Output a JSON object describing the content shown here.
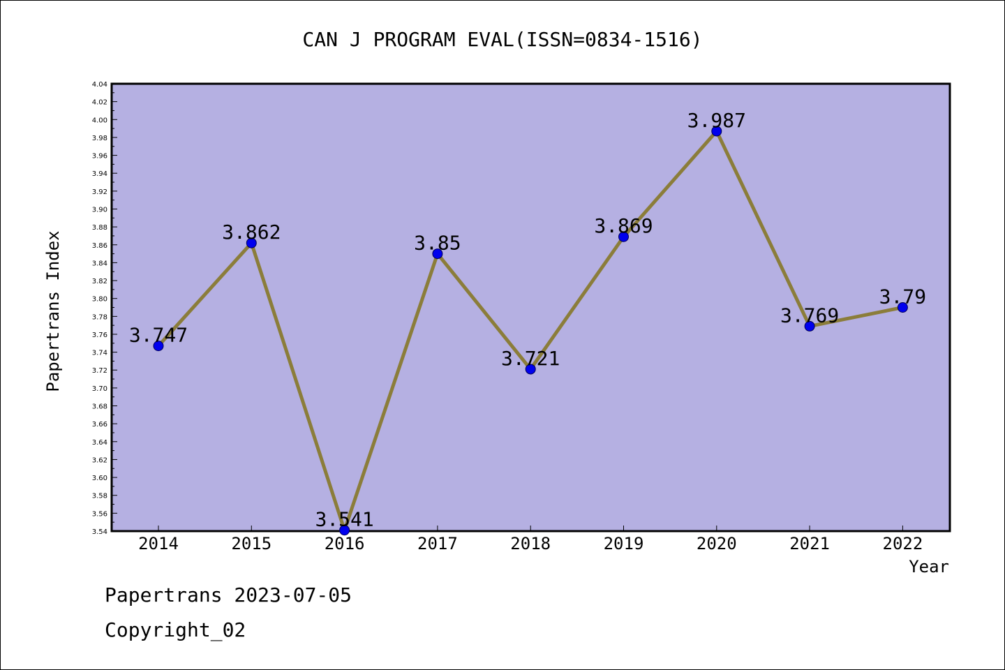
{
  "chart_data": {
    "type": "line",
    "title": "CAN J PROGRAM EVAL(ISSN=0834-1516)",
    "xlabel": "Year",
    "ylabel": "Papertrans Index",
    "categories": [
      "2014",
      "2015",
      "2016",
      "2017",
      "2018",
      "2019",
      "2020",
      "2021",
      "2022"
    ],
    "values": [
      3.747,
      3.862,
      3.541,
      3.85,
      3.721,
      3.869,
      3.987,
      3.769,
      3.79
    ],
    "data_labels": [
      "3.747",
      "3.862",
      "3.541",
      "3.85",
      "3.721",
      "3.869",
      "3.987",
      "3.769",
      "3.79"
    ],
    "ylim": [
      3.54,
      4.04
    ],
    "y_ticks": [
      "3.54",
      "3.56",
      "3.58",
      "3.60",
      "3.62",
      "3.64",
      "3.66",
      "3.68",
      "3.70",
      "3.72",
      "3.74",
      "3.76",
      "3.78",
      "3.80",
      "3.82",
      "3.84",
      "3.86",
      "3.88",
      "3.90",
      "3.92",
      "3.94",
      "3.96",
      "3.98",
      "4.00",
      "4.02",
      "4.04"
    ],
    "grid": false,
    "colors": {
      "plot_background": "#b5b0e2",
      "line": "#8b7d3a",
      "marker": "#0000ee"
    }
  },
  "footer": {
    "line1": "Papertrans 2023-07-05",
    "line2": "Copyright_02"
  }
}
